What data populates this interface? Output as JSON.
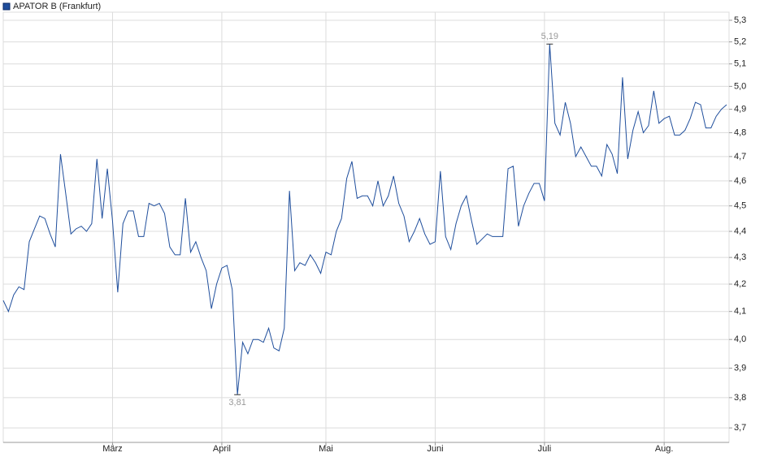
{
  "chart_data": {
    "type": "line",
    "legend": "APATOR B (Frankfurt)",
    "log_scale": true,
    "grid": true,
    "ylim": [
      3.653,
      5.338
    ],
    "yticks": [
      {
        "value": 3.7,
        "label": "3,7"
      },
      {
        "value": 3.8,
        "label": "3,8"
      },
      {
        "value": 3.9,
        "label": "3,9"
      },
      {
        "value": 4.0,
        "label": "4,0"
      },
      {
        "value": 4.1,
        "label": "4,1"
      },
      {
        "value": 4.2,
        "label": "4,2"
      },
      {
        "value": 4.3,
        "label": "4,3"
      },
      {
        "value": 4.4,
        "label": "4,4"
      },
      {
        "value": 4.5,
        "label": "4,5"
      },
      {
        "value": 4.6,
        "label": "4,6"
      },
      {
        "value": 4.7,
        "label": "4,7"
      },
      {
        "value": 4.8,
        "label": "4,8"
      },
      {
        "value": 4.9,
        "label": "4,9"
      },
      {
        "value": 5.0,
        "label": "5,0"
      },
      {
        "value": 5.1,
        "label": "5,1"
      },
      {
        "value": 5.2,
        "label": "5,2"
      },
      {
        "value": 5.3,
        "label": "5,3"
      }
    ],
    "categories": [
      null,
      null,
      null,
      null,
      null,
      null,
      null,
      null,
      null,
      null,
      null,
      null,
      null,
      null,
      null,
      null,
      null,
      null,
      null,
      null,
      null,
      "März",
      null,
      null,
      null,
      null,
      null,
      null,
      null,
      null,
      null,
      null,
      null,
      null,
      null,
      null,
      null,
      null,
      null,
      null,
      null,
      null,
      "April",
      null,
      null,
      null,
      null,
      null,
      null,
      null,
      null,
      null,
      null,
      null,
      null,
      null,
      null,
      null,
      null,
      null,
      null,
      null,
      "Mai",
      null,
      null,
      null,
      null,
      null,
      null,
      null,
      null,
      null,
      null,
      null,
      null,
      null,
      null,
      null,
      null,
      null,
      null,
      null,
      null,
      "Juni",
      null,
      null,
      null,
      null,
      null,
      null,
      null,
      null,
      null,
      null,
      null,
      null,
      null,
      null,
      null,
      null,
      null,
      null,
      null,
      null,
      "Juli",
      null,
      null,
      null,
      null,
      null,
      null,
      null,
      null,
      null,
      null,
      null,
      null,
      null,
      null,
      null,
      null,
      null,
      null,
      null,
      null,
      null,
      null,
      "Aug.",
      null,
      null,
      null,
      null,
      null,
      null,
      null,
      null,
      null,
      null,
      null,
      null
    ],
    "series": [
      {
        "name": "APATOR B (Frankfurt)",
        "color": "#1f4e9c",
        "values": [
          4.14,
          4.1,
          4.16,
          4.19,
          4.18,
          4.36,
          4.41,
          4.46,
          4.45,
          4.39,
          4.34,
          4.71,
          4.55,
          4.39,
          4.41,
          4.42,
          4.4,
          4.43,
          4.69,
          4.45,
          4.65,
          4.44,
          4.17,
          4.43,
          4.48,
          4.48,
          4.38,
          4.38,
          4.51,
          4.5,
          4.51,
          4.47,
          4.34,
          4.31,
          4.31,
          4.53,
          4.32,
          4.36,
          4.3,
          4.25,
          4.11,
          4.2,
          4.26,
          4.27,
          4.18,
          3.81,
          3.99,
          3.95,
          4.0,
          4.0,
          3.99,
          4.04,
          3.97,
          3.96,
          4.04,
          4.56,
          4.25,
          4.28,
          4.27,
          4.31,
          4.28,
          4.24,
          4.32,
          4.31,
          4.4,
          4.45,
          4.61,
          4.68,
          4.53,
          4.54,
          4.54,
          4.5,
          4.6,
          4.5,
          4.54,
          4.62,
          4.51,
          4.46,
          4.36,
          4.4,
          4.45,
          4.39,
          4.35,
          4.36,
          4.64,
          4.38,
          4.33,
          4.43,
          4.5,
          4.54,
          4.44,
          4.35,
          4.37,
          4.39,
          4.38,
          4.38,
          4.38,
          4.65,
          4.66,
          4.42,
          4.5,
          4.55,
          4.59,
          4.59,
          4.52,
          5.19,
          4.84,
          4.79,
          4.93,
          4.84,
          4.7,
          4.74,
          4.7,
          4.66,
          4.66,
          4.62,
          4.75,
          4.71,
          4.63,
          5.04,
          4.69,
          4.81,
          4.89,
          4.8,
          4.83,
          4.98,
          4.84,
          4.86,
          4.87,
          4.79,
          4.79,
          4.81,
          4.86,
          4.93,
          4.92,
          4.82,
          4.82,
          4.87,
          4.9,
          4.92
        ],
        "value_labels": [
          null,
          null,
          null,
          null,
          null,
          null,
          null,
          null,
          null,
          null,
          null,
          null,
          null,
          null,
          null,
          null,
          null,
          null,
          null,
          null,
          null,
          null,
          null,
          null,
          null,
          null,
          null,
          null,
          null,
          null,
          null,
          null,
          null,
          null,
          null,
          null,
          null,
          null,
          null,
          null,
          null,
          null,
          null,
          null,
          null,
          "3,81",
          null,
          null,
          null,
          null,
          null,
          null,
          null,
          null,
          null,
          null,
          null,
          null,
          null,
          null,
          null,
          null,
          null,
          null,
          null,
          null,
          null,
          null,
          null,
          null,
          null,
          null,
          null,
          null,
          null,
          null,
          null,
          null,
          null,
          null,
          null,
          null,
          null,
          null,
          null,
          null,
          null,
          null,
          null,
          null,
          null,
          null,
          null,
          null,
          null,
          null,
          null,
          null,
          null,
          null,
          null,
          null,
          null,
          null,
          null,
          "5,19",
          null,
          null,
          null,
          null,
          null,
          null,
          null,
          null,
          null,
          null,
          null,
          null,
          null,
          null,
          null,
          null,
          null,
          null,
          null,
          null,
          null,
          null,
          null,
          null,
          null,
          null,
          null,
          null,
          null,
          null,
          null,
          null,
          null,
          null
        ]
      }
    ]
  }
}
